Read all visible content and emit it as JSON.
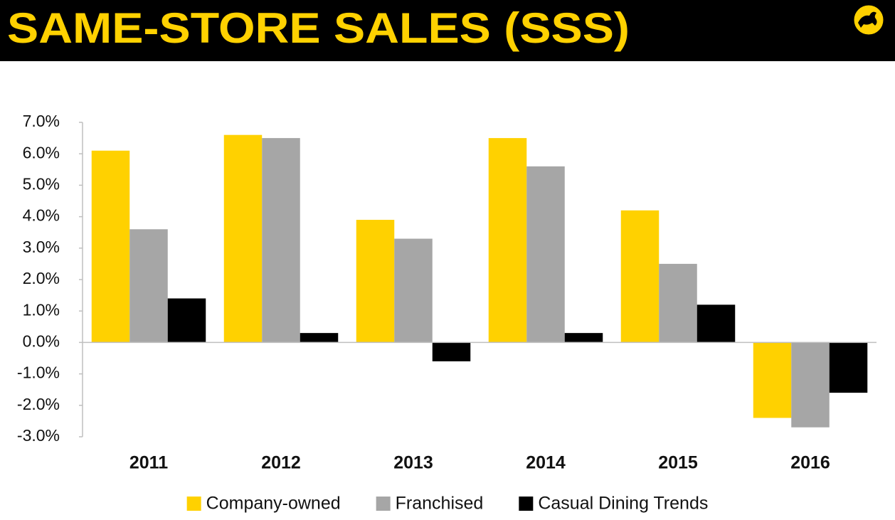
{
  "chart_data": {
    "type": "bar",
    "title": "SAME-STORE SALES (SSS)",
    "categories": [
      "2011",
      "2012",
      "2013",
      "2014",
      "2015",
      "2016"
    ],
    "series": [
      {
        "name": "Company-owned",
        "color": "#ffd100",
        "values": [
          6.1,
          6.6,
          3.9,
          6.5,
          4.2,
          -2.4
        ]
      },
      {
        "name": "Franchised",
        "color": "#a6a6a6",
        "values": [
          3.6,
          6.5,
          3.3,
          5.6,
          2.5,
          -2.7
        ]
      },
      {
        "name": "Casual Dining Trends",
        "color": "#000000",
        "values": [
          1.4,
          0.3,
          -0.6,
          0.3,
          1.2,
          -1.6
        ]
      }
    ],
    "ylim": [
      -3,
      7
    ],
    "yticks": [
      {
        "value": -3,
        "label": "-3.0%"
      },
      {
        "value": -2,
        "label": "-2.0%"
      },
      {
        "value": -1,
        "label": "-1.0%"
      },
      {
        "value": 0,
        "label": "0.0%"
      },
      {
        "value": 1,
        "label": "1.0%"
      },
      {
        "value": 2,
        "label": "2.0%"
      },
      {
        "value": 3,
        "label": "3.0%"
      },
      {
        "value": 4,
        "label": "4.0%"
      },
      {
        "value": 5,
        "label": "5.0%"
      },
      {
        "value": 6,
        "label": "6.0%"
      },
      {
        "value": 7,
        "label": "7.0%"
      }
    ],
    "grid": false,
    "legend": "bottom"
  }
}
